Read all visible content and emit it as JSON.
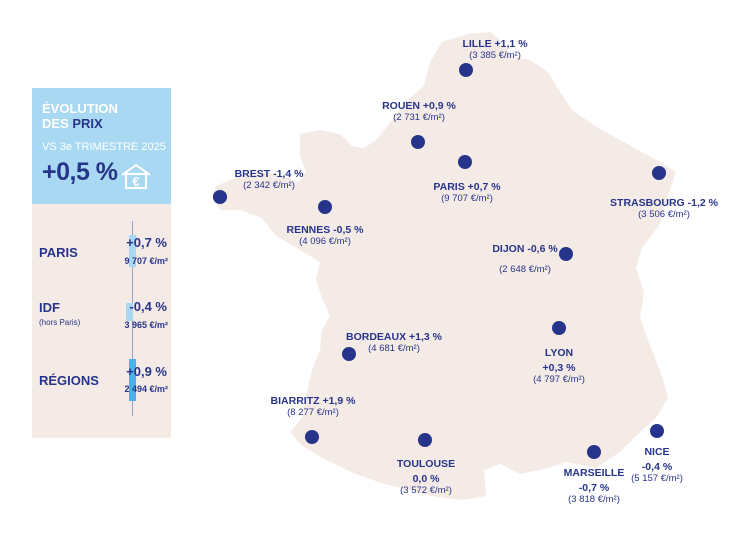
{
  "panel": {
    "title_line1": "ÉVOLUTION",
    "title_line2_prefix": "DES ",
    "title_line2_accent": "PRIX",
    "subtitle": "VS 3e TRIMESTRE 2025",
    "overall_change": "+0,5 %",
    "icon": "house-euro-icon",
    "rows": [
      {
        "label": "PARIS",
        "sublabel": "",
        "change": "+0,7 %",
        "price": "9 707 €/m²",
        "bar_value": 0.7,
        "bar_color": "#a9d9f2"
      },
      {
        "label": "IDF",
        "sublabel": "(hors Paris)",
        "change": "-0,4 %",
        "price": "3 965 €/m²",
        "bar_value": -0.4,
        "bar_color": "#a9d9f2"
      },
      {
        "label": "RÉGIONS",
        "sublabel": "",
        "change": "+0,9 %",
        "price": "2 494 €/m²",
        "bar_value": 0.9,
        "bar_color": "#4bb3e6"
      }
    ]
  },
  "colors": {
    "navy": "#27348b",
    "light_blue": "#a9d9f2",
    "map_fill": "#f5ebe6"
  },
  "cities": [
    {
      "name": "LILLE +1,1 %",
      "price": "(3 385 €/m²)"
    },
    {
      "name": "ROUEN +0,9 %",
      "price": "(2 731 €/m²)"
    },
    {
      "name": "BREST -1,4 %",
      "price": "(2 342 €/m²)"
    },
    {
      "name": "PARIS +0,7 %",
      "price": "(9 707 €/m²)"
    },
    {
      "name": "STRASBOURG -1,2 %",
      "price": "(3 506 €/m²)"
    },
    {
      "name": "RENNES -0,5 %",
      "price": "(4 096 €/m²)"
    },
    {
      "name": "DIJON -0,6 %",
      "price": "(2 648 €/m²)"
    },
    {
      "name": "BORDEAUX +1,3 %",
      "price": "(4 681 €/m²)"
    },
    {
      "name": "LYON",
      "name2": "+0,3 %",
      "price": "(4 797 €/m²)"
    },
    {
      "name": "BIARRITZ +1,9 %",
      "price": "(8 277 €/m²)"
    },
    {
      "name": "NICE",
      "name2": "-0,4 %",
      "price": "(5 157 €/m²)"
    },
    {
      "name": "TOULOUSE",
      "name2": "0,0 %",
      "price": "(3 572 €/m²)"
    },
    {
      "name": "MARSEILLE",
      "name2": "-0,7 %",
      "price": "(3 818 €/m²)"
    }
  ]
}
